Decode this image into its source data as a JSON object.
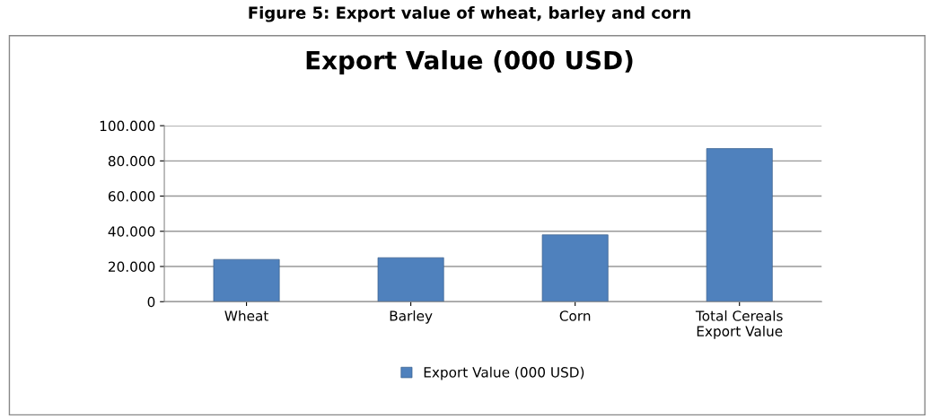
{
  "chart_data": {
    "type": "bar",
    "title": "Export Value (000 USD)",
    "annotations": [
      "Figure 5: Export value of wheat, barley and corn"
    ],
    "categories": [
      "Wheat",
      "Barley",
      "Corn",
      "Total Cereals\nExport Value"
    ],
    "series": [
      {
        "name": "Export Value (000 USD)",
        "color": "#4f81bd",
        "values": [
          24000,
          25000,
          38000,
          87000
        ]
      }
    ],
    "ylim": [
      0,
      100000
    ],
    "yticks": [
      {
        "value": 0,
        "label": "0"
      },
      {
        "value": 20000,
        "label": "20.000"
      },
      {
        "value": 40000,
        "label": "40.000"
      },
      {
        "value": 60000,
        "label": "60.000"
      },
      {
        "value": 80000,
        "label": "80.000"
      },
      {
        "value": 100000,
        "label": "100.000"
      }
    ],
    "grid": "y",
    "legend": "bottom"
  }
}
